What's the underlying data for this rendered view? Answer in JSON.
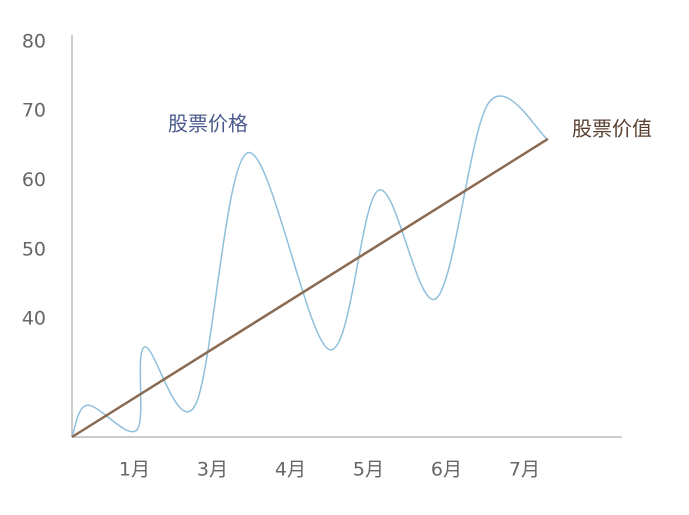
{
  "chart_data": {
    "type": "line",
    "annotations": [
      "股票价格",
      "股票价值"
    ],
    "series": [
      {
        "name": "股票价格",
        "color": "#8fbfdc",
        "x": [
          0.2,
          0.4,
          1.03,
          1.13,
          1.78,
          2.45,
          3.5,
          4.13,
          4.87,
          5.54,
          6.3
        ],
        "values": [
          23,
          27.6,
          24,
          36,
          27.6,
          64,
          35.6,
          58.6,
          43,
          71.2,
          65.9
        ]
      },
      {
        "name": "股票价值",
        "color": "#8b6a52",
        "x": [
          0.2,
          6.3
        ],
        "values": [
          23,
          66
        ]
      }
    ],
    "xlim": [
      0.2,
      7.25
    ],
    "xticks": [
      {
        "value": 1,
        "label": "1月"
      },
      {
        "value": 2,
        "label": "3月"
      },
      {
        "value": 3,
        "label": "4月"
      },
      {
        "value": 4,
        "label": "5月"
      },
      {
        "value": 5,
        "label": "6月"
      },
      {
        "value": 6,
        "label": "7月"
      }
    ],
    "ylim": [
      23,
      81
    ],
    "yticks": [
      40,
      50,
      60,
      70,
      80
    ],
    "grid": false
  }
}
